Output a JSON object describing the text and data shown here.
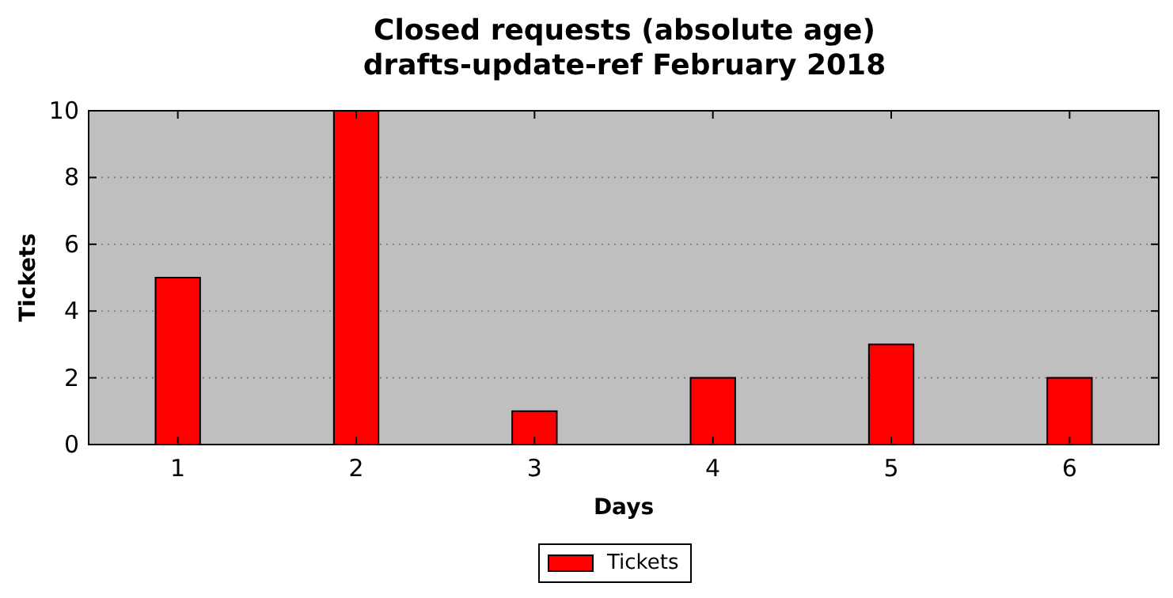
{
  "chart_data": {
    "type": "bar",
    "title": "Closed requests (absolute age)",
    "subtitle": "drafts-update-ref February 2018",
    "xlabel": "Days",
    "ylabel": "Tickets",
    "categories": [
      "1",
      "2",
      "3",
      "4",
      "5",
      "6"
    ],
    "series": [
      {
        "name": "Tickets",
        "color": "#ff0000",
        "values": [
          5,
          10,
          1,
          2,
          3,
          2
        ]
      }
    ],
    "ylim": [
      0,
      10
    ],
    "yticks": [
      0,
      2,
      4,
      6,
      8,
      10
    ],
    "grid": "y",
    "legend": "bottom"
  }
}
